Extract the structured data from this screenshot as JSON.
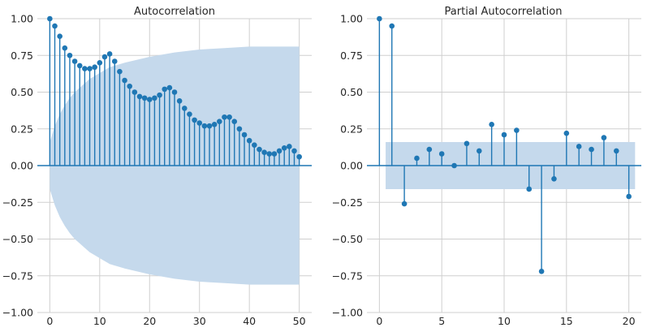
{
  "chart_data": [
    {
      "type": "stem",
      "title": "Autocorrelation",
      "xlabel": "",
      "ylabel": "",
      "xlim": [
        -2.5,
        52.5
      ],
      "ylim": [
        -1.0,
        1.0
      ],
      "x_ticks": [
        0,
        10,
        20,
        30,
        40,
        50
      ],
      "y_ticks": [
        -1.0,
        -0.75,
        -0.5,
        -0.25,
        0.0,
        0.25,
        0.5,
        0.75,
        1.0
      ],
      "x_tick_labels": [
        "0",
        "10",
        "20",
        "30",
        "40",
        "50"
      ],
      "y_tick_labels": [
        "−1.00",
        "−0.75",
        "−0.50",
        "−0.25",
        "0.00",
        "0.25",
        "0.50",
        "0.75",
        "1.00"
      ],
      "grid": true,
      "lags": [
        0,
        1,
        2,
        3,
        4,
        5,
        6,
        7,
        8,
        9,
        10,
        11,
        12,
        13,
        14,
        15,
        16,
        17,
        18,
        19,
        20,
        21,
        22,
        23,
        24,
        25,
        26,
        27,
        28,
        29,
        30,
        31,
        32,
        33,
        34,
        35,
        36,
        37,
        38,
        39,
        40,
        41,
        42,
        43,
        44,
        45,
        46,
        47,
        48,
        49,
        50
      ],
      "values": [
        1.0,
        0.95,
        0.88,
        0.8,
        0.75,
        0.71,
        0.68,
        0.66,
        0.66,
        0.67,
        0.7,
        0.74,
        0.76,
        0.71,
        0.64,
        0.58,
        0.54,
        0.5,
        0.47,
        0.46,
        0.45,
        0.46,
        0.48,
        0.52,
        0.53,
        0.5,
        0.44,
        0.39,
        0.35,
        0.31,
        0.29,
        0.27,
        0.27,
        0.28,
        0.3,
        0.33,
        0.33,
        0.3,
        0.25,
        0.21,
        0.17,
        0.14,
        0.11,
        0.09,
        0.08,
        0.08,
        0.1,
        0.12,
        0.13,
        0.1,
        0.06
      ],
      "confidence_band": {
        "lags": [
          0,
          1,
          2,
          3,
          4,
          5,
          6,
          7,
          8,
          9,
          10,
          11,
          12,
          13,
          14,
          15,
          20,
          25,
          30,
          35,
          40,
          45,
          50
        ],
        "upper": [
          0.16,
          0.27,
          0.35,
          0.41,
          0.46,
          0.5,
          0.53,
          0.56,
          0.59,
          0.61,
          0.63,
          0.65,
          0.67,
          0.68,
          0.69,
          0.7,
          0.74,
          0.77,
          0.79,
          0.8,
          0.81,
          0.81,
          0.81
        ]
      }
    },
    {
      "type": "stem",
      "title": "Partial Autocorrelation",
      "xlabel": "",
      "ylabel": "",
      "xlim": [
        -1.0,
        21.0
      ],
      "ylim": [
        -1.0,
        1.0
      ],
      "x_ticks": [
        0,
        5,
        10,
        15,
        20
      ],
      "y_ticks": [
        -1.0,
        -0.75,
        -0.5,
        -0.25,
        0.0,
        0.25,
        0.5,
        0.75,
        1.0
      ],
      "x_tick_labels": [
        "0",
        "5",
        "10",
        "15",
        "20"
      ],
      "y_tick_labels": [
        "−1.00",
        "−0.75",
        "−0.50",
        "−0.25",
        "0.00",
        "0.25",
        "0.50",
        "0.75",
        "1.00"
      ],
      "grid": true,
      "lags": [
        0,
        1,
        2,
        3,
        4,
        5,
        6,
        7,
        8,
        9,
        10,
        11,
        12,
        13,
        14,
        15,
        16,
        17,
        18,
        19,
        20
      ],
      "values": [
        1.0,
        0.95,
        -0.26,
        0.05,
        0.11,
        0.08,
        0.0,
        0.15,
        0.1,
        0.28,
        0.21,
        0.24,
        -0.16,
        -0.72,
        -0.09,
        0.22,
        0.13,
        0.11,
        0.19,
        0.1,
        -0.21
      ],
      "confidence_band": {
        "lags": [
          0.5,
          20.5
        ],
        "upper": [
          0.16,
          0.16
        ]
      }
    }
  ],
  "colors": {
    "stem": "#1f77b4",
    "band": "#c5d9ec",
    "grid": "#cfcfcf"
  }
}
